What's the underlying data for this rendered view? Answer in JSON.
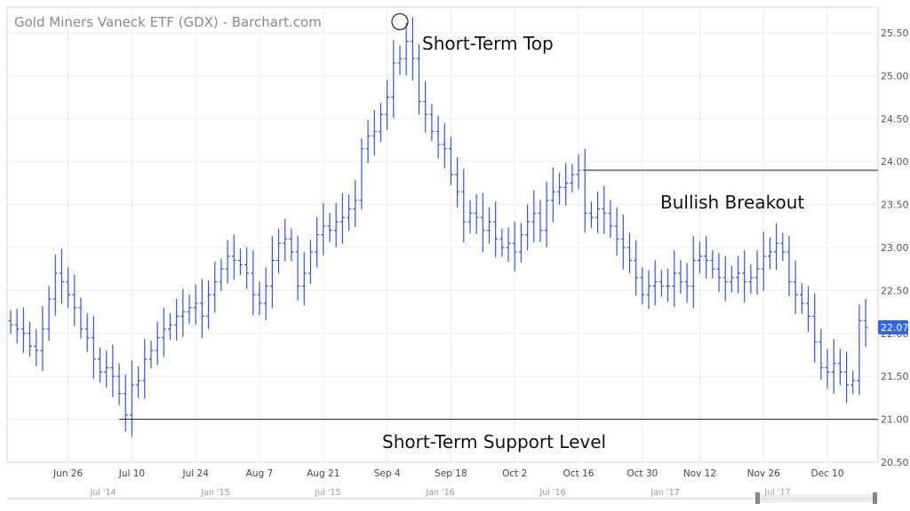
{
  "chart_data": {
    "type": "ohlc",
    "title": "Gold Miners Vaneck ETF (GDX) - Barchart.com",
    "ylim": [
      20.5,
      25.8
    ],
    "yticks": [
      "20.50",
      "21.00",
      "21.50",
      "22.00",
      "22.50",
      "23.00",
      "23.50",
      "24.00",
      "24.50",
      "25.00",
      "25.50"
    ],
    "last_price": "22.07",
    "x_ticks": [
      {
        "label": "Jun 26",
        "index": 9
      },
      {
        "label": "Jul 10",
        "index": 19
      },
      {
        "label": "Jul 24",
        "index": 29
      },
      {
        "label": "Aug 7",
        "index": 39
      },
      {
        "label": "Aug 21",
        "index": 49
      },
      {
        "label": "Sep 4",
        "index": 59
      },
      {
        "label": "Sep 18",
        "index": 69
      },
      {
        "label": "Oct 2",
        "index": 79
      },
      {
        "label": "Oct 16",
        "index": 89
      },
      {
        "label": "Oct 30",
        "index": 99
      },
      {
        "label": "Nov 12",
        "index": 108
      },
      {
        "label": "Nov 26",
        "index": 118
      },
      {
        "label": "Dec 10",
        "index": 128
      }
    ],
    "navigator_ticks": [
      "Jul '14",
      "Jan '15",
      "Jul '15",
      "Jan '16",
      "Jul '16",
      "Jan '17",
      "Jul '17"
    ],
    "annotations": [
      {
        "text": "Short-Term Top",
        "kind": "circle-marker",
        "price": 25.63,
        "index": 61
      },
      {
        "text": "Bullish Breakout",
        "kind": "horizontal-line",
        "price": 23.9,
        "from_index": 90
      },
      {
        "text": "Short-Term Support Level",
        "kind": "horizontal-line",
        "price": 21.0,
        "from_index": 17
      }
    ],
    "close": [
      22.1,
      22.05,
      22.0,
      21.85,
      21.8,
      22.05,
      22.4,
      22.7,
      22.6,
      22.45,
      22.3,
      22.05,
      21.95,
      21.7,
      21.55,
      21.6,
      21.5,
      21.3,
      21.05,
      21.4,
      21.45,
      21.7,
      21.8,
      21.95,
      22.05,
      22.1,
      22.2,
      22.25,
      22.3,
      22.35,
      22.2,
      22.45,
      22.6,
      22.75,
      22.9,
      22.85,
      22.8,
      22.7,
      22.45,
      22.35,
      22.55,
      22.85,
      23.05,
      23.1,
      22.95,
      22.55,
      22.7,
      22.95,
      23.15,
      23.25,
      23.2,
      23.3,
      23.35,
      23.45,
      23.55,
      24.15,
      24.3,
      24.35,
      24.55,
      24.75,
      25.15,
      25.2,
      25.4,
      25.2,
      24.7,
      24.55,
      24.35,
      24.2,
      24.15,
      23.85,
      23.65,
      23.3,
      23.4,
      23.35,
      23.2,
      23.3,
      23.1,
      23.0,
      23.05,
      22.95,
      23.15,
      23.3,
      23.4,
      23.2,
      23.55,
      23.65,
      23.7,
      23.75,
      23.85,
      23.9,
      23.4,
      23.35,
      23.45,
      23.4,
      23.25,
      23.1,
      23.0,
      22.85,
      22.65,
      22.45,
      22.55,
      22.6,
      22.55,
      22.55,
      22.7,
      22.6,
      22.55,
      22.85,
      22.9,
      22.85,
      22.75,
      22.65,
      22.6,
      22.65,
      22.7,
      22.6,
      22.65,
      22.75,
      22.9,
      22.95,
      23.05,
      22.95,
      22.6,
      22.45,
      22.35,
      22.2,
      21.9,
      21.6,
      21.55,
      21.65,
      21.55,
      21.4,
      21.45,
      22.15,
      22.07
    ]
  }
}
